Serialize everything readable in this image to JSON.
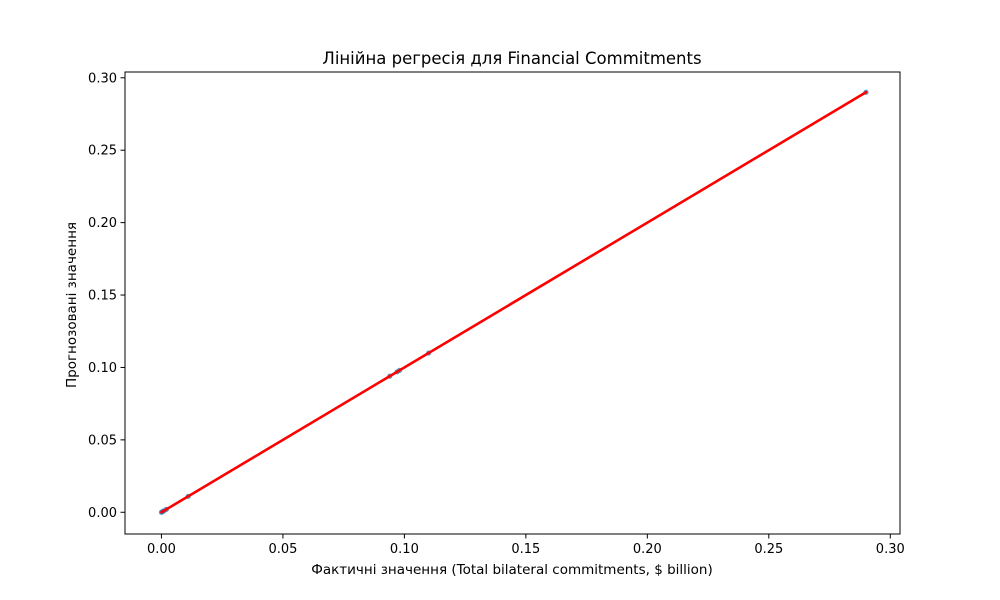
{
  "chart_data": {
    "type": "scatter",
    "title": "Лінійна регресія для Financial Commitments",
    "xlabel": "Фактичні значення (Total bilateral commitments, $ billion)",
    "ylabel": "Прогнозовані значення",
    "xlim": [
      -0.015,
      0.304
    ],
    "ylim": [
      -0.015,
      0.304
    ],
    "xticks": [
      "0.00",
      "0.05",
      "0.10",
      "0.15",
      "0.20",
      "0.25",
      "0.30"
    ],
    "yticks": [
      "0.00",
      "0.05",
      "0.10",
      "0.15",
      "0.20",
      "0.25",
      "0.30"
    ],
    "grid": false,
    "points": [
      {
        "x": 0.0,
        "y": 0.0
      },
      {
        "x": 0.0005,
        "y": 0.0005
      },
      {
        "x": 0.001,
        "y": 0.001
      },
      {
        "x": 0.002,
        "y": 0.002
      },
      {
        "x": 0.011,
        "y": 0.011
      },
      {
        "x": 0.094,
        "y": 0.094
      },
      {
        "x": 0.097,
        "y": 0.097
      },
      {
        "x": 0.098,
        "y": 0.098
      },
      {
        "x": 0.11,
        "y": 0.11
      },
      {
        "x": 0.29,
        "y": 0.29
      }
    ],
    "fit_line": {
      "x": [
        0.0,
        0.29
      ],
      "y": [
        0.0,
        0.29
      ]
    },
    "colors": {
      "points": "#1f77b4",
      "fit_line": "#ff0000"
    }
  }
}
